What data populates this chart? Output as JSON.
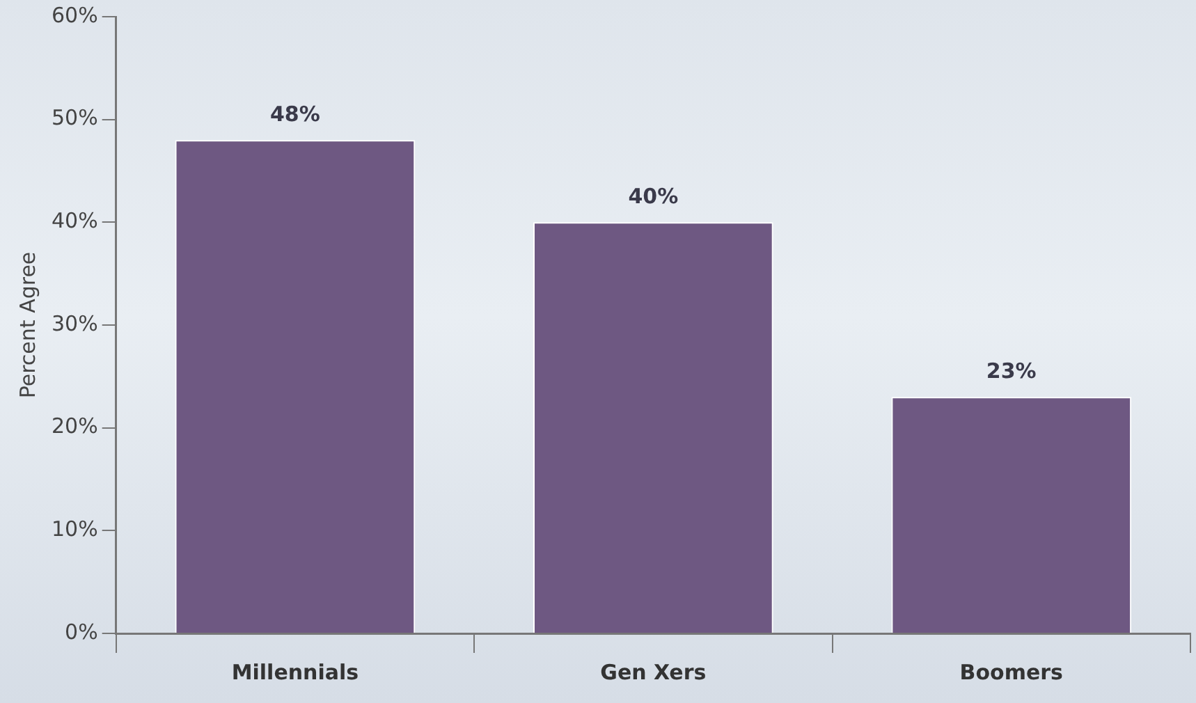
{
  "chart_data": {
    "type": "bar",
    "ylabel": "Percent Agree",
    "categories": [
      "Millennials",
      "Gen Xers",
      "Boomers"
    ],
    "values": [
      48,
      40,
      23
    ],
    "value_labels": [
      "48%",
      "40%",
      "23%"
    ],
    "color": "#6e5882",
    "ylim": [
      0,
      60
    ],
    "yticks": [
      {
        "value": 0,
        "label": "0%"
      },
      {
        "value": 10,
        "label": "10%"
      },
      {
        "value": 20,
        "label": "20%"
      },
      {
        "value": 30,
        "label": "30%"
      },
      {
        "value": 40,
        "label": "40%"
      },
      {
        "value": 50,
        "label": "50%"
      },
      {
        "value": 60,
        "label": "60%"
      }
    ],
    "grid": false,
    "legend": false
  }
}
